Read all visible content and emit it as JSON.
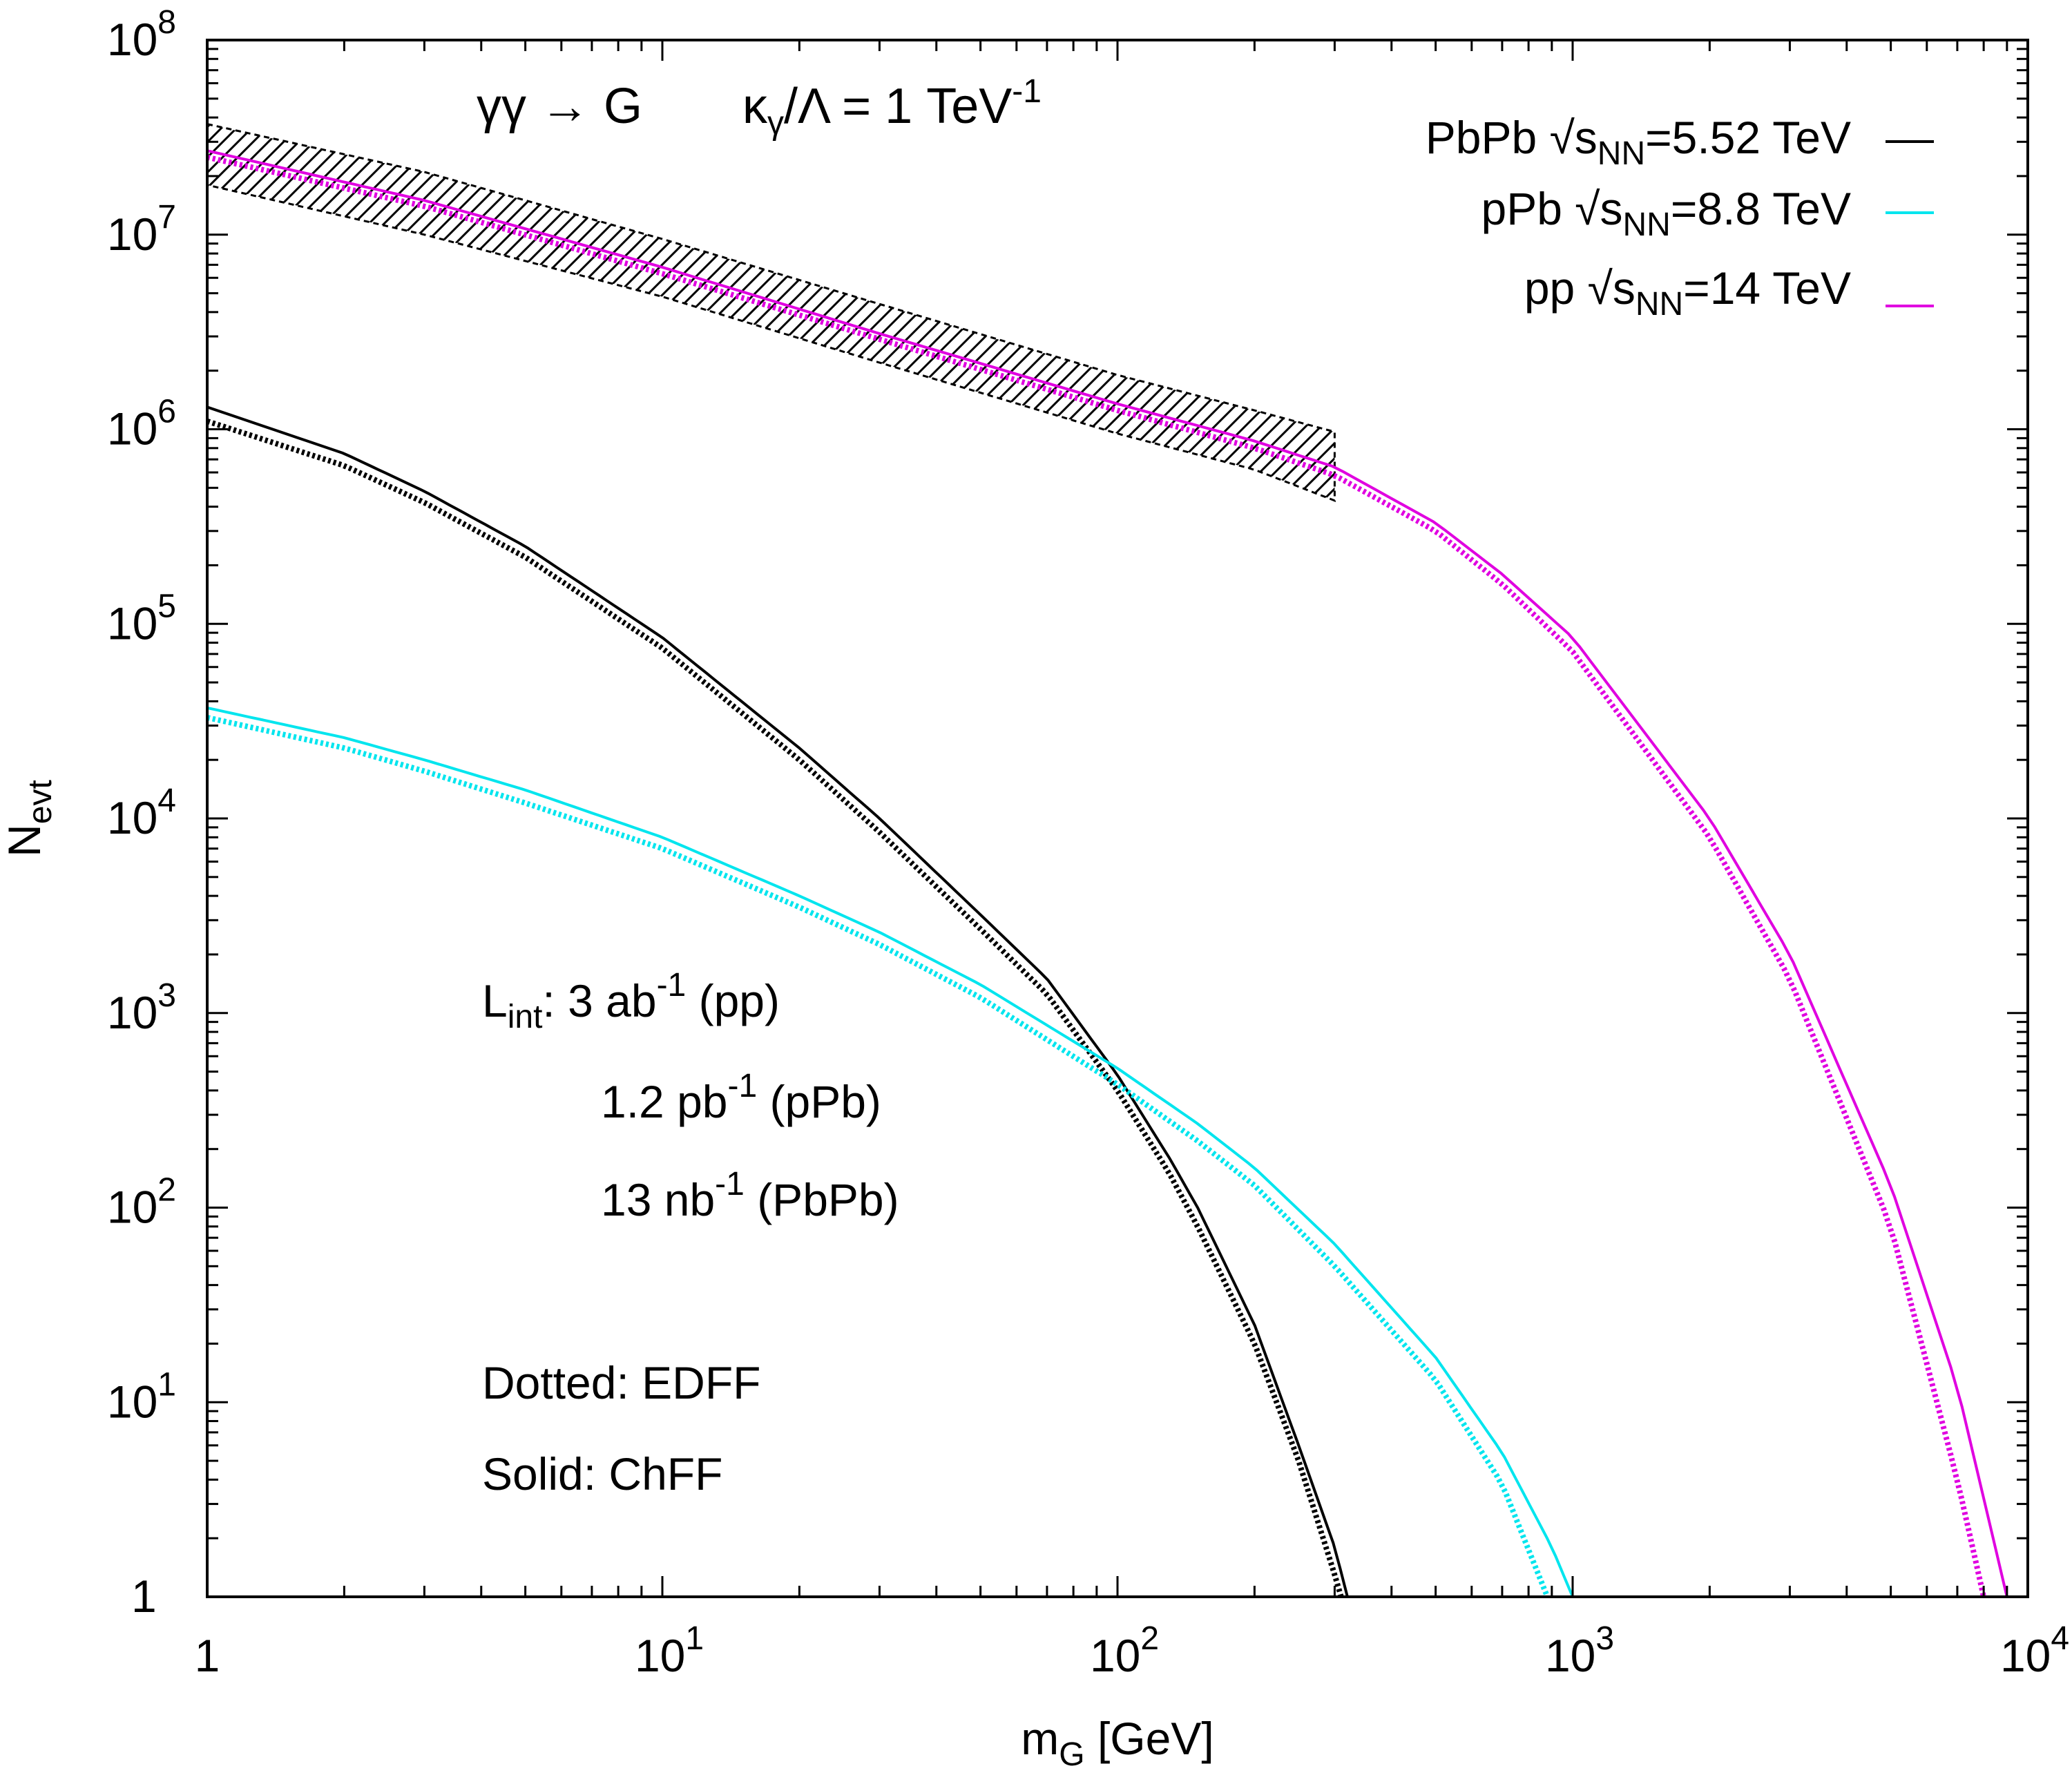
{
  "chart_data": {
    "type": "line",
    "title": {
      "process": "γγ → G",
      "coupling_base": "κ",
      "coupling_sub": "γ",
      "coupling_mid": "/Λ = 1 TeV",
      "coupling_sup": "-1"
    },
    "xlabel": {
      "base": "m",
      "sub": "G",
      "rest": " [GeV]"
    },
    "ylabel": {
      "base": "N",
      "sub": "evt"
    },
    "xscale": "log",
    "yscale": "log",
    "xlim": [
      1,
      10000
    ],
    "ylim": [
      1,
      100000000
    ],
    "x_ticks": [
      {
        "value": 1,
        "base": "1",
        "exp": ""
      },
      {
        "value": 10,
        "base": "10",
        "exp": "1"
      },
      {
        "value": 100,
        "base": "10",
        "exp": "2"
      },
      {
        "value": 1000,
        "base": "10",
        "exp": "3"
      },
      {
        "value": 10000,
        "base": "10",
        "exp": "4"
      }
    ],
    "y_ticks": [
      {
        "value": 1,
        "base": "1",
        "exp": ""
      },
      {
        "value": 10,
        "base": "10",
        "exp": "1"
      },
      {
        "value": 100,
        "base": "10",
        "exp": "2"
      },
      {
        "value": 1000,
        "base": "10",
        "exp": "3"
      },
      {
        "value": 10000,
        "base": "10",
        "exp": "4"
      },
      {
        "value": 100000,
        "base": "10",
        "exp": "5"
      },
      {
        "value": 1000000,
        "base": "10",
        "exp": "6"
      },
      {
        "value": 10000000,
        "base": "10",
        "exp": "7"
      },
      {
        "value": 100000000,
        "base": "10",
        "exp": "8"
      }
    ],
    "legend": {
      "position": "top-right",
      "entries": [
        {
          "name": "PbPb",
          "energy": "=5.52 TeV",
          "color": "#000000"
        },
        {
          "name": "pPb",
          "energy": "=8.8 TeV",
          "color": "#00e5ee"
        },
        {
          "name": "pp",
          "energy": "=14 TeV",
          "color": "#e000e0"
        }
      ],
      "sqrt_label": "√s",
      "sqrt_sub": "NN"
    },
    "series": [
      {
        "name": "PbPb ChFF",
        "color": "#000000",
        "style": "solid",
        "x": [
          1,
          2,
          3,
          5,
          10,
          20,
          30,
          50,
          70,
          100,
          130,
          150,
          200,
          250,
          300,
          320
        ],
        "y": [
          1300000,
          750000,
          480000,
          250000,
          85000,
          23000,
          10000,
          3200,
          1500,
          480,
          180,
          100,
          25,
          6,
          1.8,
          1
        ]
      },
      {
        "name": "PbPb EDFF",
        "color": "#000000",
        "style": "dotted",
        "x": [
          1,
          2,
          3,
          5,
          10,
          20,
          30,
          50,
          70,
          100,
          130,
          150,
          200,
          250,
          300,
          310
        ],
        "y": [
          1100000,
          650000,
          420000,
          220000,
          75000,
          20000,
          8500,
          2700,
          1250,
          400,
          150,
          80,
          20,
          5,
          1.3,
          1
        ]
      },
      {
        "name": "pPb ChFF",
        "color": "#00e5ee",
        "style": "solid",
        "x": [
          1,
          2,
          3,
          5,
          10,
          20,
          30,
          50,
          100,
          150,
          200,
          300,
          500,
          700,
          900,
          1000
        ],
        "y": [
          37000,
          26000,
          20000,
          14000,
          8000,
          4000,
          2600,
          1400,
          520,
          270,
          160,
          65,
          17,
          5.5,
          1.8,
          1
        ]
      },
      {
        "name": "pPb EDFF",
        "color": "#00e5ee",
        "style": "dotted",
        "x": [
          1,
          2,
          3,
          5,
          10,
          20,
          30,
          50,
          100,
          150,
          200,
          300,
          500,
          700,
          880
        ],
        "y": [
          33000,
          23000,
          17500,
          12000,
          7000,
          3500,
          2250,
          1200,
          430,
          220,
          130,
          50,
          13,
          3.8,
          1
        ]
      },
      {
        "name": "pp ChFF",
        "color": "#e000e0",
        "style": "solid",
        "x": [
          1,
          3,
          10,
          30,
          100,
          200,
          300,
          500,
          700,
          1000,
          2000,
          3000,
          5000,
          7000,
          9000
        ],
        "y": [
          27000000,
          15000000,
          6800000,
          3100000,
          1350000,
          870000,
          640000,
          330000,
          180000,
          85000,
          10000,
          2000,
          130,
          12,
          1
        ]
      },
      {
        "name": "pp EDFF",
        "color": "#e000e0",
        "style": "dotted",
        "x": [
          1,
          3,
          10,
          30,
          100,
          200,
          300,
          500,
          700,
          1000,
          2000,
          3000,
          5000,
          7000,
          8000
        ],
        "y": [
          25000000,
          14000000,
          6300000,
          2900000,
          1250000,
          800000,
          580000,
          300000,
          160000,
          72000,
          8000,
          1500,
          80,
          4,
          1
        ]
      }
    ],
    "band": {
      "name": "pp uncertainty band",
      "color": "#000000",
      "x": [
        1,
        3,
        10,
        30,
        100,
        200,
        300
      ],
      "lower": [
        18000000,
        10000000,
        4800000,
        2200000,
        950000,
        620000,
        430000
      ],
      "upper": [
        37000000,
        21000000,
        9500000,
        4400000,
        1900000,
        1250000,
        970000
      ]
    },
    "annotations": {
      "lumi_base": "L",
      "lumi_sub": "int",
      "lumi_lines": [
        {
          "pre": ": 3 ab",
          "sup": "-1",
          "post": " (pp)"
        },
        {
          "pre": "1.2 pb",
          "sup": "-1",
          "post": " (pPb)"
        },
        {
          "pre": "13 nb",
          "sup": "-1",
          "post": " (PbPb)"
        }
      ],
      "dotted_note": "Dotted: EDFF",
      "solid_note": "Solid: ChFF"
    }
  }
}
